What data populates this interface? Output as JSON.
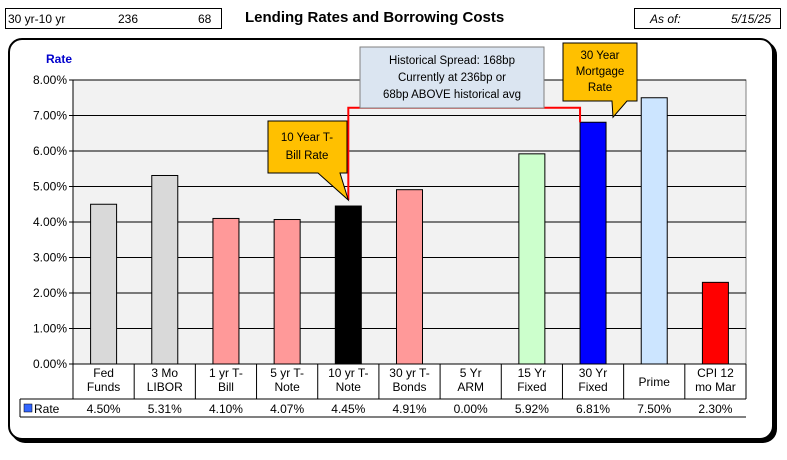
{
  "header": {
    "spread_label": "30 yr-10 yr",
    "spread_current": "236",
    "spread_above": "68",
    "as_of_label": "As of:",
    "as_of_date": "5/15/25"
  },
  "chart_data": {
    "type": "bar",
    "title": "Lending Rates and Borrowing Costs",
    "ylabel": "Rate",
    "ylim": [
      0,
      8
    ],
    "yticks": [
      "0.00%",
      "1.00%",
      "2.00%",
      "3.00%",
      "4.00%",
      "5.00%",
      "6.00%",
      "7.00%",
      "8.00%"
    ],
    "grid": true,
    "categories": [
      [
        "Fed",
        "Funds"
      ],
      [
        "3 Mo",
        "LIBOR"
      ],
      [
        "1 yr  T-",
        "Bill"
      ],
      [
        "5 yr T-",
        "Note"
      ],
      [
        "10 yr T-",
        "Note"
      ],
      [
        "30 yr T-",
        "Bonds"
      ],
      [
        "5 Yr",
        "ARM"
      ],
      [
        "15 Yr",
        "Fixed"
      ],
      [
        "30 Yr",
        "Fixed"
      ],
      [
        "Prime"
      ],
      [
        "CPI 12",
        "mo Mar"
      ]
    ],
    "series": [
      {
        "name": "Rate",
        "values": [
          4.5,
          5.31,
          4.1,
          4.07,
          4.45,
          4.91,
          0.0,
          5.92,
          6.81,
          7.5,
          2.3
        ],
        "labels": [
          "4.50%",
          "5.31%",
          "4.10%",
          "4.07%",
          "4.45%",
          "4.91%",
          "0.00%",
          "5.92%",
          "6.81%",
          "7.50%",
          "2.30%"
        ],
        "colors": [
          "#d9d9d9",
          "#d9d9d9",
          "#ff9999",
          "#ff9999",
          "#000000",
          "#ff9999",
          "#ff9999",
          "#ccffcc",
          "#0000ff",
          "#cce5ff",
          "#ff0000"
        ]
      }
    ],
    "legend_key_color": "#3366ff",
    "annotations": {
      "spread_note": [
        "Historical Spread: 168bp",
        "Currently at 236bp  or",
        "68bp ABOVE historical avg"
      ],
      "callout_10yr": [
        "10 Year T-",
        "Bill Rate"
      ],
      "callout_30yr": [
        "30 Year",
        "Mortgage",
        "Rate"
      ]
    },
    "colors": {
      "callout_fill": "#ffc000",
      "note_fill": "#dbe5f1",
      "connector": "#ff0000",
      "ylabel_color": "#0000cc"
    }
  }
}
